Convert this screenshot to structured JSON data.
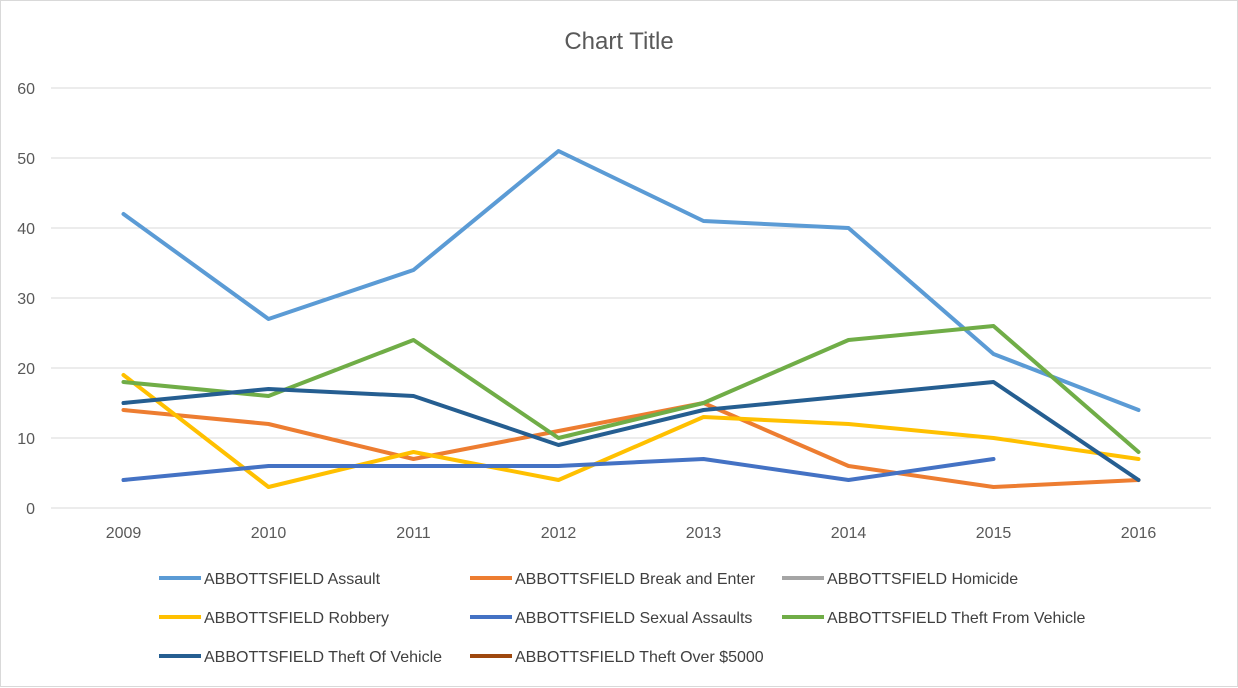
{
  "chart_data": {
    "type": "line",
    "title": "Chart Title",
    "xlabel": "",
    "ylabel": "",
    "categories": [
      "2009",
      "2010",
      "2011",
      "2012",
      "2013",
      "2014",
      "2015",
      "2016"
    ],
    "ylim": [
      0,
      60
    ],
    "yticks": [
      0,
      10,
      20,
      30,
      40,
      50,
      60
    ],
    "grid": "horizontal",
    "legend_position": "bottom",
    "series": [
      {
        "name": "ABBOTTSFIELD Assault",
        "color": "#5B9BD5",
        "values": [
          42,
          27,
          34,
          51,
          41,
          40,
          22,
          14
        ]
      },
      {
        "name": "ABBOTTSFIELD Break and Enter",
        "color": "#ED7D31",
        "values": [
          14,
          12,
          7,
          11,
          15,
          6,
          3,
          4
        ]
      },
      {
        "name": "ABBOTTSFIELD Homicide",
        "color": "#A5A5A5",
        "values": [
          null,
          null,
          null,
          null,
          null,
          null,
          null,
          null
        ]
      },
      {
        "name": "ABBOTTSFIELD Robbery",
        "color": "#FFC000",
        "values": [
          19,
          3,
          8,
          4,
          13,
          12,
          10,
          7
        ]
      },
      {
        "name": "ABBOTTSFIELD Sexual Assaults",
        "color": "#4472C4",
        "values": [
          4,
          6,
          6,
          6,
          7,
          4,
          7,
          null
        ]
      },
      {
        "name": "ABBOTTSFIELD Theft From Vehicle",
        "color": "#70AD47",
        "values": [
          18,
          16,
          24,
          10,
          15,
          24,
          26,
          8
        ]
      },
      {
        "name": "ABBOTTSFIELD Theft Of Vehicle",
        "color": "#255E91",
        "values": [
          15,
          17,
          16,
          9,
          14,
          16,
          18,
          4
        ]
      },
      {
        "name": "ABBOTTSFIELD Theft Over $5000",
        "color": "#9E480E",
        "values": [
          null,
          null,
          null,
          null,
          null,
          null,
          null,
          null
        ]
      }
    ]
  }
}
